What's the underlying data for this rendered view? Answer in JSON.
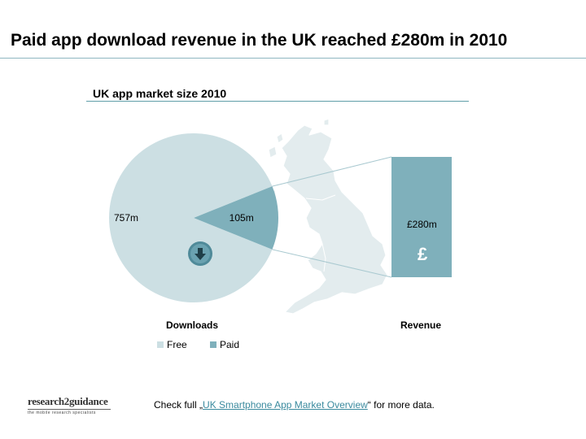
{
  "slide": {
    "title": "Paid app download revenue in the UK reached £280m in 2010"
  },
  "chart_data": {
    "type": "pie",
    "title": "UK app market size 2010",
    "xlabel": "Downloads",
    "categories": [
      "Free",
      "Paid"
    ],
    "values": [
      757,
      105
    ],
    "value_labels": [
      "757m",
      "105m"
    ],
    "legend": {
      "placement": "bottom-left",
      "entries": [
        "Free",
        "Paid"
      ]
    },
    "colors": {
      "free": "#ccdfe3",
      "paid": "#7fb0bb"
    },
    "revenue": {
      "label": "Revenue",
      "value": 280,
      "value_label": "£280m",
      "symbol": "£"
    }
  },
  "icons": {
    "download": "download-arrow-icon",
    "map": "uk-map-icon"
  },
  "footer": {
    "prefix": "Check full „",
    "link_text": "UK Smartphone App Market Overview",
    "suffix": "“ for more data."
  },
  "logo": {
    "name": "research2guidance",
    "tagline": "the mobile research specialists"
  }
}
